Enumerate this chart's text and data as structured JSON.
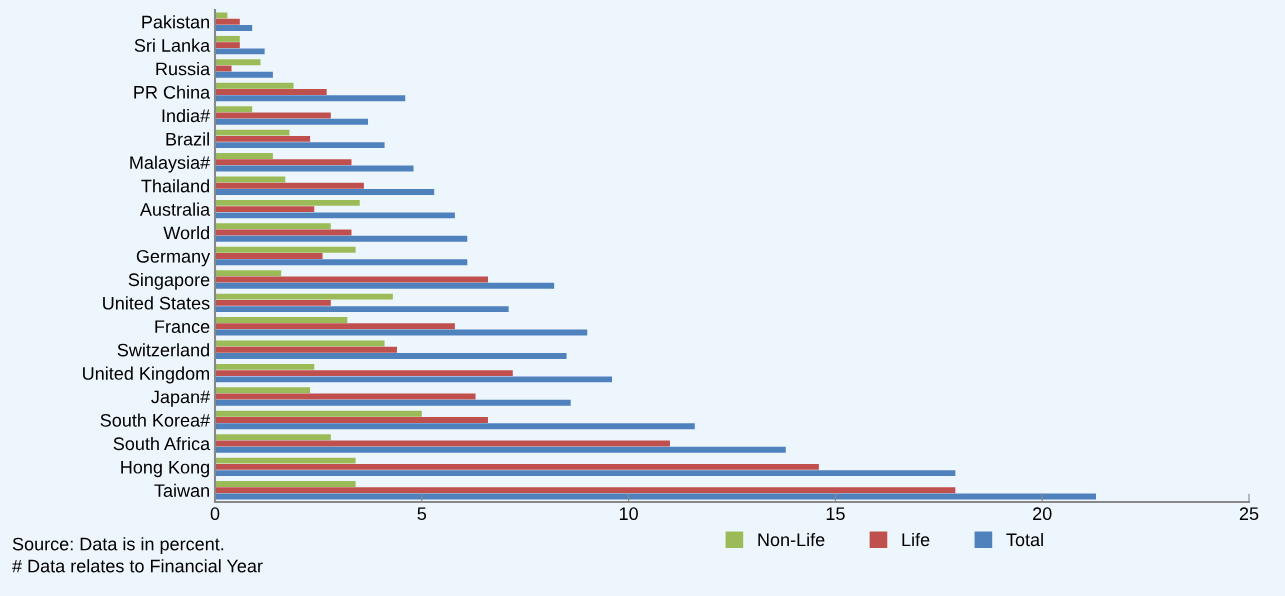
{
  "chart_data": {
    "type": "bar",
    "orientation": "horizontal",
    "categories": [
      "Pakistan",
      "Sri Lanka",
      "Russia",
      "PR China",
      "India#",
      "Brazil",
      "Malaysia#",
      "Thailand",
      "Australia",
      "World",
      "Germany",
      "Singapore",
      "United States",
      "France",
      "Switzerland",
      "United Kingdom",
      "Japan#",
      "South Korea#",
      "South Africa",
      "Hong Kong",
      "Taiwan"
    ],
    "series": [
      {
        "name": "Non-Life",
        "color": "#9bbb59",
        "values": [
          0.3,
          0.6,
          1.1,
          1.9,
          0.9,
          1.8,
          1.4,
          1.7,
          3.5,
          2.8,
          3.4,
          1.6,
          4.3,
          3.2,
          4.1,
          2.4,
          2.3,
          5.0,
          2.8,
          3.4,
          3.4
        ]
      },
      {
        "name": "Life",
        "color": "#c0504d",
        "values": [
          0.6,
          0.6,
          0.4,
          2.7,
          2.8,
          2.3,
          3.3,
          3.6,
          2.4,
          3.3,
          2.6,
          6.6,
          2.8,
          5.8,
          4.4,
          7.2,
          6.3,
          6.6,
          11.0,
          14.6,
          17.9
        ]
      },
      {
        "name": "Total",
        "color": "#4f81bd",
        "values": [
          0.9,
          1.2,
          1.4,
          4.6,
          3.7,
          4.1,
          4.8,
          5.3,
          5.8,
          6.1,
          6.1,
          8.2,
          7.1,
          9.0,
          8.5,
          9.6,
          8.6,
          11.6,
          13.8,
          17.9,
          21.3
        ]
      }
    ],
    "xlim": [
      0,
      25
    ],
    "xticks": [
      0,
      5,
      10,
      15,
      20,
      25
    ],
    "grid": false,
    "legend": "bottom",
    "annotations": [
      "Source: Data is in percent.",
      "# Data relates to Financial Year"
    ]
  }
}
